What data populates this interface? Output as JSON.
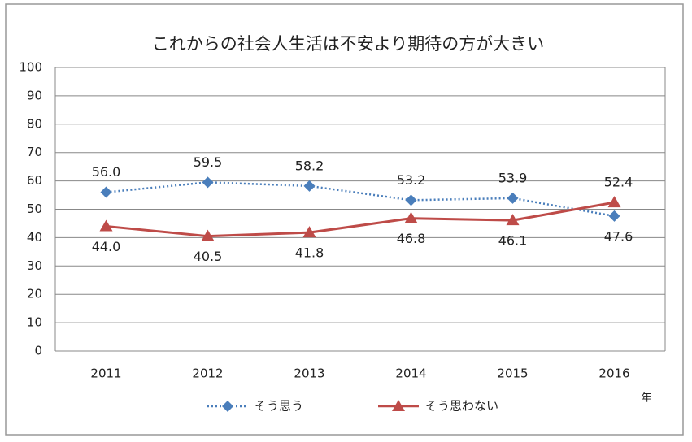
{
  "chart_data": {
    "type": "line",
    "title": "これからの社会人生活は不安より期待の方が大きい",
    "x_label": "年",
    "categories": [
      "2011",
      "2012",
      "2013",
      "2014",
      "2015",
      "2016"
    ],
    "series": [
      {
        "name": "そう思う",
        "color": "#4a7ebb",
        "line_style": "dotted",
        "marker": "diamond",
        "values": [
          56.0,
          59.5,
          58.2,
          53.2,
          53.9,
          47.6
        ],
        "value_labels": [
          "56.0",
          "59.5",
          "58.2",
          "53.2",
          "53.9",
          "47.6"
        ]
      },
      {
        "name": "そう思わない",
        "color": "#be4b48",
        "line_style": "solid",
        "marker": "triangle",
        "values": [
          44.0,
          40.5,
          41.8,
          46.8,
          46.1,
          52.4
        ],
        "value_labels": [
          "44.0",
          "40.5",
          "41.8",
          "46.8",
          "46.1",
          "52.4"
        ]
      }
    ],
    "ylim": [
      0,
      100
    ],
    "yticks": [
      0,
      10,
      20,
      30,
      40,
      50,
      60,
      70,
      80,
      90,
      100
    ],
    "grid": true
  }
}
